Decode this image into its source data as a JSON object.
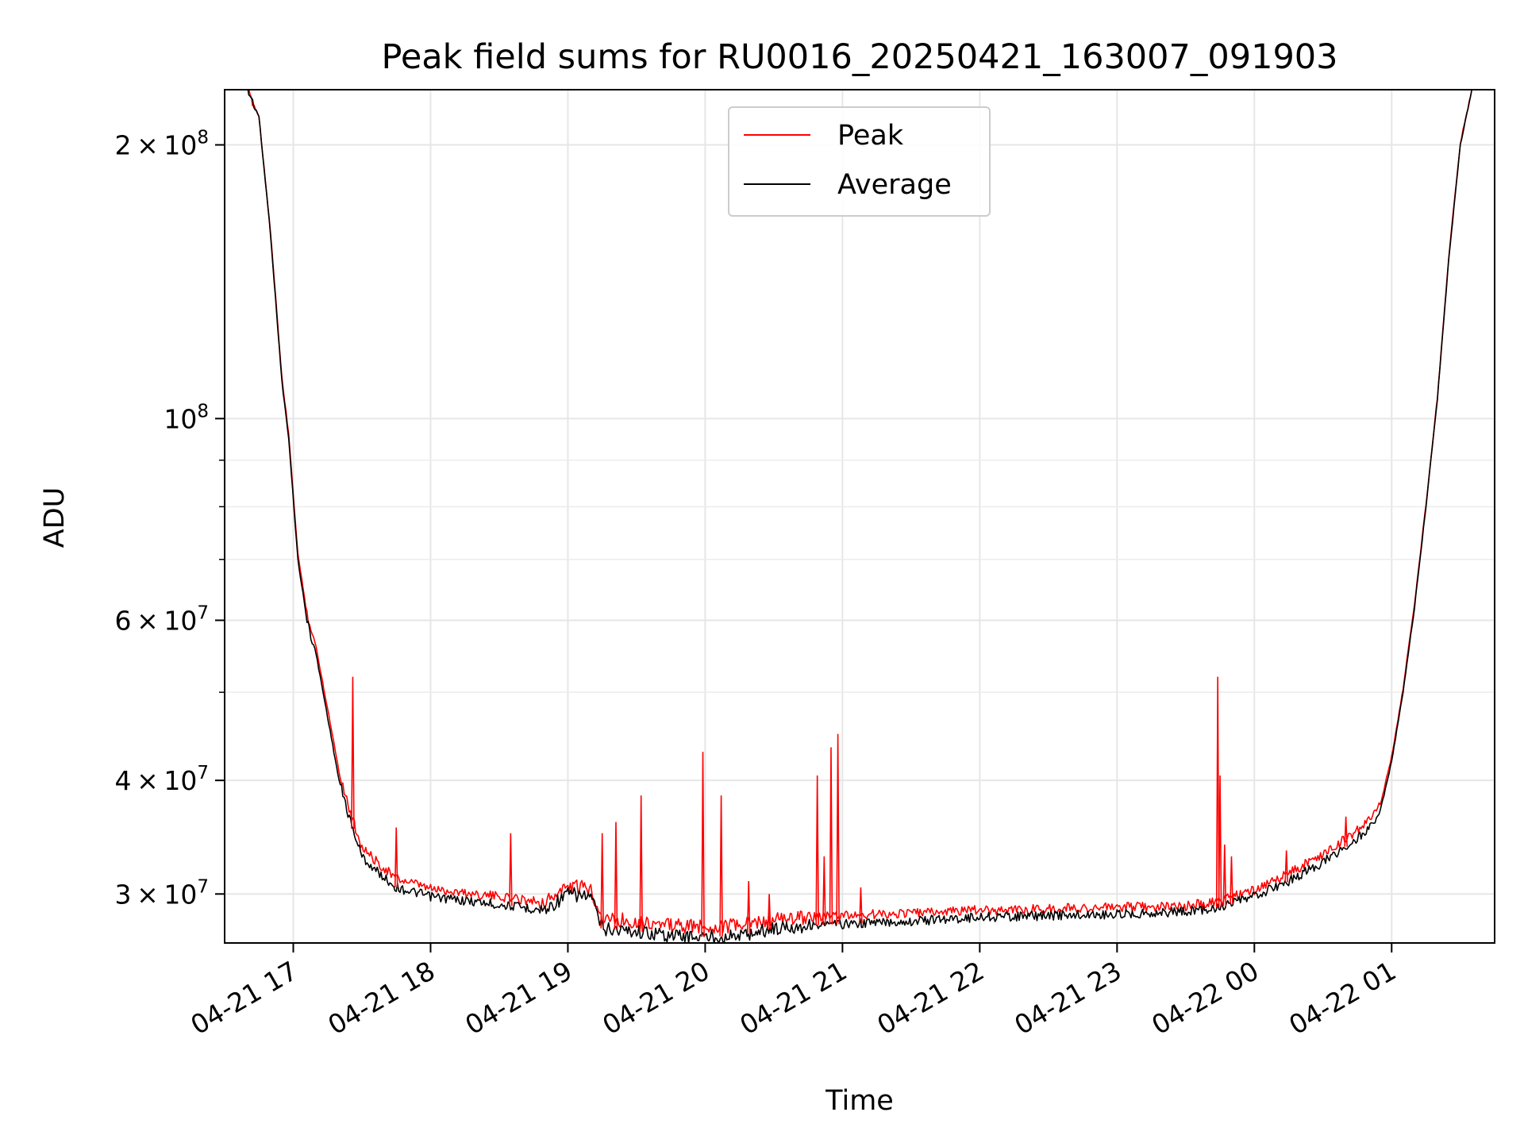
{
  "chart_data": {
    "type": "line",
    "title": "Peak field sums for RU0016_20250421_163007_091903",
    "xlabel": "Time",
    "ylabel": "ADU",
    "yscale": "log",
    "grid": true,
    "legend_position": "top-center",
    "xlim": [
      "2025-04-21 16:30",
      "2025-04-22 01:45"
    ],
    "ylim": [
      26500000,
      230000000
    ],
    "x_ticks": [
      {
        "value": "2025-04-21 17:00",
        "label": "04-21 17"
      },
      {
        "value": "2025-04-21 18:00",
        "label": "04-21 18"
      },
      {
        "value": "2025-04-21 19:00",
        "label": "04-21 19"
      },
      {
        "value": "2025-04-21 20:00",
        "label": "04-21 20"
      },
      {
        "value": "2025-04-21 21:00",
        "label": "04-21 21"
      },
      {
        "value": "2025-04-21 22:00",
        "label": "04-21 22"
      },
      {
        "value": "2025-04-21 23:00",
        "label": "04-21 23"
      },
      {
        "value": "2025-04-22 00:00",
        "label": "04-22 00"
      },
      {
        "value": "2025-04-22 01:00",
        "label": "04-22 01"
      }
    ],
    "y_ticks": [
      {
        "value": 30000000,
        "base": "3",
        "exp": "7"
      },
      {
        "value": 40000000,
        "base": "4",
        "exp": "7"
      },
      {
        "value": 60000000,
        "base": "6",
        "exp": "7"
      },
      {
        "value": 100000000,
        "base": "",
        "exp": "8"
      },
      {
        "value": 200000000,
        "base": "2",
        "exp": "8"
      }
    ],
    "y_minor_ticks": [
      50000000,
      70000000,
      80000000,
      90000000
    ],
    "series": [
      {
        "name": "Average",
        "color": "#000000",
        "x": [
          "2025-04-21 16:40",
          "2025-04-21 16:45",
          "2025-04-21 16:50",
          "2025-04-21 16:55",
          "2025-04-21 16:58",
          "2025-04-21 17:02",
          "2025-04-21 17:06",
          "2025-04-21 17:10",
          "2025-04-21 17:15",
          "2025-04-21 17:20",
          "2025-04-21 17:25",
          "2025-04-21 17:30",
          "2025-04-21 17:35",
          "2025-04-21 17:45",
          "2025-04-21 18:00",
          "2025-04-21 18:15",
          "2025-04-21 18:30",
          "2025-04-21 18:40",
          "2025-04-21 18:50",
          "2025-04-21 19:00",
          "2025-04-21 19:10",
          "2025-04-21 19:15",
          "2025-04-21 19:30",
          "2025-04-21 19:45",
          "2025-04-21 20:00",
          "2025-04-21 20:15",
          "2025-04-21 20:30",
          "2025-04-21 20:45",
          "2025-04-21 21:00",
          "2025-04-21 21:30",
          "2025-04-21 22:00",
          "2025-04-21 22:30",
          "2025-04-21 23:00",
          "2025-04-21 23:30",
          "2025-04-21 23:45",
          "2025-04-22 00:00",
          "2025-04-22 00:15",
          "2025-04-22 00:30",
          "2025-04-22 00:45",
          "2025-04-22 00:50",
          "2025-04-22 00:55",
          "2025-04-22 01:00",
          "2025-04-22 01:05",
          "2025-04-22 01:10",
          "2025-04-22 01:15",
          "2025-04-22 01:20",
          "2025-04-22 01:25",
          "2025-04-22 01:30",
          "2025-04-22 01:35"
        ],
        "y": [
          230000000,
          215000000,
          160000000,
          110000000,
          95000000,
          70000000,
          60000000,
          55000000,
          47000000,
          40000000,
          36000000,
          33000000,
          32000000,
          30500000,
          29800000,
          29500000,
          29200000,
          29000000,
          28800000,
          30000000,
          29800000,
          27500000,
          27300000,
          27000000,
          26900000,
          27000000,
          27500000,
          27700000,
          27800000,
          28000000,
          28300000,
          28400000,
          28500000,
          28700000,
          29000000,
          29800000,
          31000000,
          32500000,
          34500000,
          35500000,
          37000000,
          42000000,
          50000000,
          62000000,
          80000000,
          105000000,
          150000000,
          200000000,
          230000000
        ]
      },
      {
        "name": "Peak",
        "color": "#ff0000",
        "x": [
          "2025-04-21 16:40",
          "2025-04-21 16:45",
          "2025-04-21 16:50",
          "2025-04-21 16:55",
          "2025-04-21 16:58",
          "2025-04-21 17:02",
          "2025-04-21 17:06",
          "2025-04-21 17:10",
          "2025-04-21 17:15",
          "2025-04-21 17:20",
          "2025-04-21 17:25",
          "2025-04-21 17:30",
          "2025-04-21 17:35",
          "2025-04-21 17:45",
          "2025-04-21 18:00",
          "2025-04-21 18:15",
          "2025-04-21 18:30",
          "2025-04-21 18:40",
          "2025-04-21 18:50",
          "2025-04-21 19:00",
          "2025-04-21 19:10",
          "2025-04-21 19:15",
          "2025-04-21 19:30",
          "2025-04-21 19:45",
          "2025-04-21 20:00",
          "2025-04-21 20:15",
          "2025-04-21 20:30",
          "2025-04-21 20:45",
          "2025-04-21 21:00",
          "2025-04-21 21:30",
          "2025-04-21 22:00",
          "2025-04-21 22:30",
          "2025-04-21 23:00",
          "2025-04-21 23:30",
          "2025-04-21 23:45",
          "2025-04-22 00:00",
          "2025-04-22 00:15",
          "2025-04-22 00:30",
          "2025-04-22 00:45",
          "2025-04-22 00:50",
          "2025-04-22 00:55",
          "2025-04-22 01:00",
          "2025-04-22 01:05",
          "2025-04-22 01:10",
          "2025-04-22 01:15",
          "2025-04-22 01:20",
          "2025-04-22 01:25",
          "2025-04-22 01:30",
          "2025-04-22 01:35"
        ],
        "y": [
          230000000,
          215000000,
          161000000,
          111000000,
          96000000,
          71000000,
          61000000,
          56000000,
          48000000,
          41000000,
          36800000,
          33800000,
          32800000,
          31200000,
          30400000,
          30100000,
          29800000,
          29600000,
          29400000,
          30600000,
          30400000,
          28200000,
          28000000,
          27700000,
          27600000,
          27700000,
          28100000,
          28300000,
          28400000,
          28600000,
          28800000,
          28900000,
          29000000,
          29100000,
          29500000,
          30300000,
          31600000,
          33200000,
          35200000,
          36200000,
          37600000,
          42500000,
          50500000,
          62500000,
          80500000,
          105500000,
          151000000,
          201000000,
          230000000
        ]
      }
    ],
    "spikes": [
      {
        "x": "2025-04-21 17:26",
        "y": 52000000
      },
      {
        "x": "2025-04-21 17:45",
        "y": 35500000
      },
      {
        "x": "2025-04-21 18:35",
        "y": 35000000
      },
      {
        "x": "2025-04-21 19:15",
        "y": 35000000
      },
      {
        "x": "2025-04-21 19:21",
        "y": 36000000
      },
      {
        "x": "2025-04-21 19:32",
        "y": 38500000
      },
      {
        "x": "2025-04-21 19:59",
        "y": 43000000
      },
      {
        "x": "2025-04-21 20:07",
        "y": 38500000
      },
      {
        "x": "2025-04-21 20:19",
        "y": 31000000
      },
      {
        "x": "2025-04-21 20:28",
        "y": 30000000
      },
      {
        "x": "2025-04-21 20:49",
        "y": 40500000
      },
      {
        "x": "2025-04-21 20:52",
        "y": 33000000
      },
      {
        "x": "2025-04-21 20:55",
        "y": 43500000
      },
      {
        "x": "2025-04-21 20:58",
        "y": 45000000
      },
      {
        "x": "2025-04-21 21:08",
        "y": 30500000
      },
      {
        "x": "2025-04-21 23:44",
        "y": 52000000
      },
      {
        "x": "2025-04-21 23:45",
        "y": 40500000
      },
      {
        "x": "2025-04-21 23:47",
        "y": 34000000
      },
      {
        "x": "2025-04-21 23:50",
        "y": 33000000
      },
      {
        "x": "2025-04-22 00:14",
        "y": 33500000
      },
      {
        "x": "2025-04-22 00:40",
        "y": 36500000
      }
    ]
  }
}
